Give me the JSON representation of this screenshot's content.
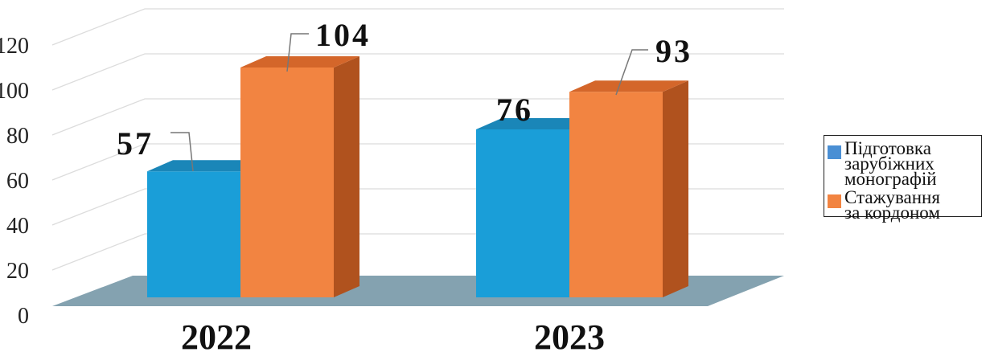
{
  "chart_data": {
    "type": "bar",
    "categories": [
      "2022",
      "2023"
    ],
    "series": [
      {
        "name": "Підготовка\nзарубіжних\nмонографій",
        "values": [
          57,
          76
        ],
        "color": "#1a9ed8",
        "side_color": "#1776a8",
        "top_color": "#1a86b8"
      },
      {
        "name": "Стажування\nза кордоном",
        "values": [
          104,
          93
        ],
        "color": "#f28441",
        "side_color": "#b0521e",
        "top_color": "#d4662a"
      }
    ],
    "y_ticks": [
      "0",
      "20",
      "40",
      "60",
      "80",
      "100",
      "120"
    ],
    "ylim": [
      0,
      120
    ],
    "data_labels": [
      "57",
      "104",
      "76",
      "93"
    ],
    "grid": true,
    "legend_position": "right",
    "floor_color": "#84a2b0",
    "legend_colors": [
      "#4a8fd4",
      "#f28441"
    ]
  }
}
